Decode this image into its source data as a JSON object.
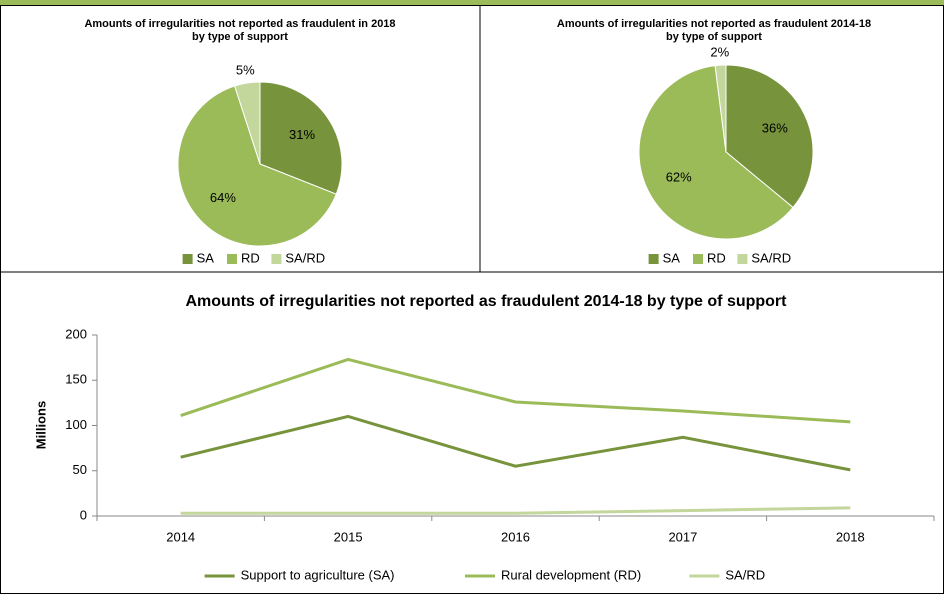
{
  "chart_data": [
    {
      "type": "pie",
      "title": [
        "Amounts of irregularities not reported as fraudulent in 2018",
        "by type of support"
      ],
      "categories": [
        "SA",
        "RD",
        "SA/RD"
      ],
      "values": [
        31,
        64,
        5
      ],
      "value_labels": [
        "31%",
        "64%",
        "5%"
      ],
      "colors": [
        "#77933c",
        "#9bbb59",
        "#c3d69b"
      ]
    },
    {
      "type": "pie",
      "title": [
        "Amounts of irregularities not reported as fraudulent 2014-18",
        "by type of support"
      ],
      "categories": [
        "SA",
        "RD",
        "SA/RD"
      ],
      "values": [
        36,
        62,
        2
      ],
      "value_labels": [
        "36%",
        "62%",
        "2%"
      ],
      "colors": [
        "#77933c",
        "#9bbb59",
        "#c3d69b"
      ]
    },
    {
      "type": "line",
      "title": "Amounts of irregularities not reported as fraudulent 2014-18 by type of support",
      "y_label": "Millions",
      "categories": [
        "2014",
        "2015",
        "2016",
        "2017",
        "2018"
      ],
      "series": [
        {
          "name": "Support to agriculture (SA)",
          "color": "#77933c",
          "values": [
            65,
            110,
            55,
            87,
            51
          ]
        },
        {
          "name": "Rural development (RD)",
          "color": "#9bbb59",
          "values": [
            111,
            173,
            126,
            116,
            104
          ]
        },
        {
          "name": "SA/RD",
          "color": "#c3d69b",
          "values": [
            3,
            3,
            3,
            6,
            9
          ]
        }
      ],
      "ylim": [
        0,
        200
      ],
      "yticks": [
        0,
        50,
        100,
        150,
        200
      ]
    }
  ]
}
